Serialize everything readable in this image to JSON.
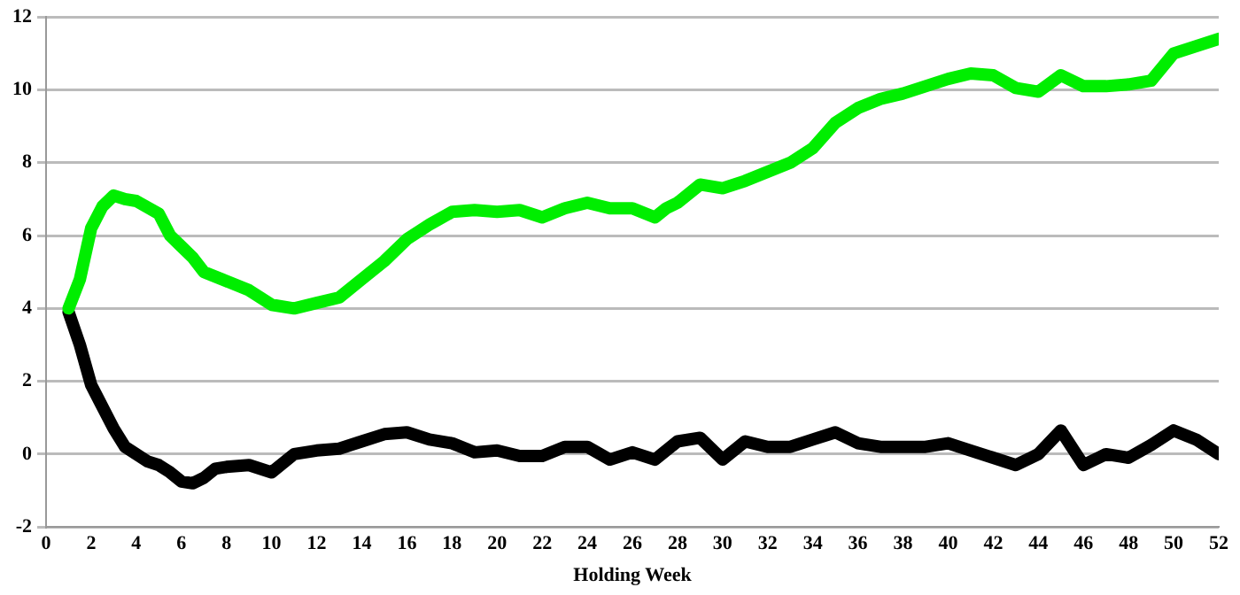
{
  "chart_data": {
    "type": "line",
    "xlabel": "Holding Week",
    "xlim": [
      0,
      52
    ],
    "xticks": [
      0,
      2,
      4,
      6,
      8,
      10,
      12,
      14,
      16,
      18,
      20,
      22,
      24,
      26,
      28,
      30,
      32,
      34,
      36,
      38,
      40,
      42,
      44,
      46,
      48,
      50,
      52
    ],
    "ylim": [
      -2,
      12
    ],
    "yticks": [
      -2,
      0,
      2,
      4,
      6,
      8,
      10,
      12
    ],
    "grid": "y",
    "legend": false,
    "marker": "none",
    "line_style": "solid",
    "series": [
      {
        "color": "#00ee00",
        "x": [
          1,
          1.5,
          2,
          2.5,
          3,
          3.5,
          4,
          5,
          5.5,
          6,
          6.5,
          7,
          8,
          9,
          10,
          11,
          12,
          13,
          14,
          15,
          16,
          17,
          18,
          19,
          20,
          21,
          22,
          23,
          24,
          25,
          26,
          27,
          27.5,
          28,
          29,
          30,
          31,
          32,
          33,
          34,
          35,
          36,
          37,
          38,
          39,
          40,
          41,
          42,
          43,
          44,
          45,
          46,
          47,
          48,
          49,
          50,
          51,
          52
        ],
        "values": [
          4.0,
          4.8,
          6.2,
          6.8,
          7.1,
          7.0,
          6.95,
          6.6,
          6.0,
          5.7,
          5.4,
          5.0,
          4.75,
          4.5,
          4.1,
          4.0,
          4.15,
          4.3,
          4.8,
          5.3,
          5.9,
          6.3,
          6.65,
          6.7,
          6.65,
          6.7,
          6.5,
          6.75,
          6.9,
          6.75,
          6.75,
          6.5,
          6.75,
          6.9,
          7.4,
          7.3,
          7.5,
          7.75,
          8.0,
          8.4,
          9.1,
          9.5,
          9.75,
          9.9,
          10.1,
          10.3,
          10.45,
          10.4,
          10.05,
          9.95,
          10.4,
          10.1,
          10.1,
          10.15,
          10.25,
          11.0,
          11.2,
          11.4
        ]
      },
      {
        "color": "#000000",
        "x": [
          1,
          1.5,
          2,
          2.5,
          3,
          3.5,
          4,
          4.5,
          5,
          5.5,
          6,
          6.5,
          7,
          7.5,
          8,
          9,
          10,
          11,
          12,
          13,
          14,
          15,
          16,
          17,
          18,
          19,
          20,
          21,
          22,
          23,
          24,
          25,
          26,
          27,
          28,
          29,
          30,
          31,
          32,
          33,
          34,
          35,
          36,
          37,
          38,
          39,
          40,
          41,
          42,
          43,
          44,
          45,
          46,
          47,
          48,
          49,
          50,
          51,
          52
        ],
        "values": [
          3.9,
          3.0,
          1.9,
          1.3,
          0.7,
          0.2,
          0.0,
          -0.2,
          -0.3,
          -0.5,
          -0.75,
          -0.8,
          -0.65,
          -0.4,
          -0.35,
          -0.3,
          -0.5,
          0.0,
          0.1,
          0.15,
          0.35,
          0.55,
          0.6,
          0.4,
          0.3,
          0.05,
          0.1,
          -0.05,
          -0.05,
          0.2,
          0.2,
          -0.15,
          0.05,
          -0.15,
          0.35,
          0.45,
          -0.15,
          0.35,
          0.2,
          0.2,
          0.4,
          0.6,
          0.3,
          0.2,
          0.2,
          0.2,
          0.3,
          0.1,
          -0.1,
          -0.3,
          0.0,
          0.65,
          -0.3,
          0.0,
          -0.1,
          0.25,
          0.65,
          0.4,
          0.0
        ]
      }
    ]
  }
}
